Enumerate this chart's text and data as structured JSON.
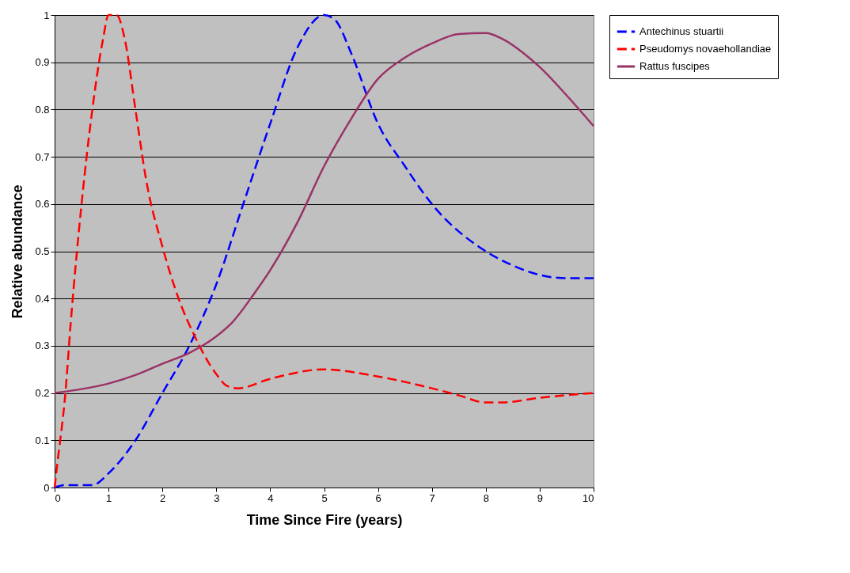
{
  "chart_data": {
    "type": "line",
    "xlabel": "Time Since Fire (years)",
    "ylabel": "Relative abundance",
    "xlim": [
      0,
      10
    ],
    "xticks": [
      0,
      1,
      2,
      3,
      4,
      5,
      6,
      7,
      8,
      9,
      10
    ],
    "ylim": [
      0,
      1
    ],
    "yticks": [
      0,
      0.1,
      0.2,
      0.3,
      0.4,
      0.5,
      0.6,
      0.7,
      0.8,
      0.9,
      1
    ],
    "grid": "y",
    "legend": "right",
    "series": [
      {
        "name": "Antechinus stuartii",
        "color": "#0000ff",
        "line_style": "dashed",
        "x": [
          0,
          0.2,
          0.7,
          1,
          1.5,
          2,
          2.5,
          3,
          3.5,
          4,
          4.5,
          5,
          5.2,
          5.5,
          6,
          6.5,
          7,
          8,
          8.5,
          9,
          9.5,
          10
        ],
        "values": [
          0,
          0.005,
          0.005,
          0.03,
          0.1,
          0.2,
          0.3,
          0.43,
          0.6,
          0.77,
          0.93,
          1,
          0.99,
          0.92,
          0.77,
          0.68,
          0.6,
          0.5,
          0.47,
          0.45,
          0.443,
          0.443
        ]
      },
      {
        "name": "Pseudomys novaehollandiae",
        "color": "#ff0000",
        "line_style": "dashed",
        "x": [
          0,
          0.05,
          0.2,
          0.3,
          0.5,
          0.7,
          0.9,
          1,
          1.15,
          1.3,
          1.5,
          1.7,
          2,
          2.3,
          2.6,
          3,
          3.2,
          3.4,
          4,
          5,
          6,
          7,
          7.5,
          8,
          8.3,
          9,
          10
        ],
        "values": [
          0,
          0.05,
          0.2,
          0.35,
          0.6,
          0.8,
          0.95,
          1,
          1,
          0.95,
          0.8,
          0.65,
          0.51,
          0.4,
          0.32,
          0.24,
          0.215,
          0.21,
          0.23,
          0.25,
          0.235,
          0.21,
          0.195,
          0.18,
          0.18,
          0.19,
          0.2
        ]
      },
      {
        "name": "Rattus fuscipes",
        "color": "#993366",
        "line_style": "solid",
        "x": [
          0,
          1,
          1.5,
          2,
          2.5,
          3,
          3.3,
          3.7,
          4,
          4.5,
          5,
          5.5,
          6,
          6.5,
          7,
          7.5,
          8,
          8.3,
          8.8,
          9,
          9.5,
          10
        ],
        "values": [
          0.2,
          0.22,
          0.238,
          0.262,
          0.285,
          0.32,
          0.35,
          0.41,
          0.46,
          0.56,
          0.68,
          0.78,
          0.865,
          0.91,
          0.94,
          0.96,
          0.962,
          0.95,
          0.91,
          0.89,
          0.83,
          0.765
        ]
      }
    ]
  }
}
